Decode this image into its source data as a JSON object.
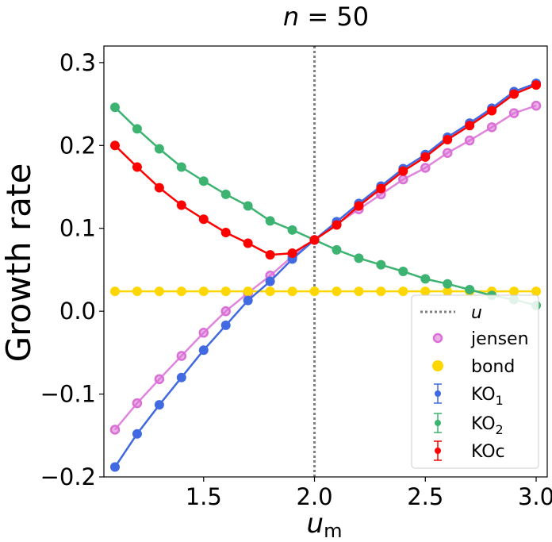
{
  "chart_data": {
    "type": "line",
    "title": "n = 50",
    "title_parts": {
      "lhs": "n",
      "eq": " = 50"
    },
    "ylabel": "Growth rate",
    "xlabel": "u",
    "xlabel_sub": "m",
    "xlim": [
      1.05,
      3.05
    ],
    "ylim": [
      -0.2,
      0.32
    ],
    "xticks": [
      1.5,
      2.0,
      2.5,
      3.0
    ],
    "xtick_labels": [
      "1.5",
      "2.0",
      "2.5",
      "3.0"
    ],
    "yticks": [
      -0.2,
      -0.1,
      0.0,
      0.1,
      0.2,
      0.3
    ],
    "ytick_labels": [
      "−0.2",
      "−0.1",
      "0.0",
      "0.1",
      "0.2",
      "0.3"
    ],
    "vline": {
      "x": 2.0,
      "color": "#808080",
      "label": "u"
    },
    "legend_position": "lower-right",
    "x": [
      1.1,
      1.2,
      1.3,
      1.4,
      1.5,
      1.6,
      1.7,
      1.8,
      1.9,
      2.0,
      2.1,
      2.2,
      2.3,
      2.4,
      2.5,
      2.6,
      2.7,
      2.8,
      2.9,
      3.0
    ],
    "series": [
      {
        "name": "jensen",
        "color": "#DA70D6",
        "style": "line-open-marker",
        "values": [
          -0.143,
          -0.111,
          -0.082,
          -0.054,
          -0.026,
          0.0,
          0.022,
          0.043,
          0.066,
          0.086,
          0.105,
          0.123,
          0.141,
          0.159,
          0.173,
          0.191,
          0.206,
          0.222,
          0.239,
          0.248
        ]
      },
      {
        "name": "bond",
        "color": "#FFD700",
        "style": "line-filled-marker",
        "values": [
          0.024,
          0.024,
          0.024,
          0.024,
          0.024,
          0.024,
          0.024,
          0.024,
          0.024,
          0.024,
          0.024,
          0.024,
          0.024,
          0.024,
          0.024,
          0.024,
          0.024,
          0.024,
          0.024,
          0.024
        ]
      },
      {
        "name": "KO",
        "name_sub": "1",
        "color": "#4169E1",
        "style": "errorbar",
        "values": [
          -0.188,
          -0.148,
          -0.113,
          -0.08,
          -0.047,
          -0.017,
          0.013,
          0.036,
          0.063,
          0.086,
          0.108,
          0.13,
          0.151,
          0.172,
          0.189,
          0.21,
          0.227,
          0.245,
          0.265,
          0.275
        ]
      },
      {
        "name": "KO",
        "name_sub": "2",
        "color": "#3CB371",
        "style": "errorbar",
        "values": [
          0.246,
          0.22,
          0.196,
          0.174,
          0.157,
          0.141,
          0.127,
          0.109,
          0.098,
          0.086,
          0.074,
          0.064,
          0.056,
          0.048,
          0.039,
          0.033,
          0.026,
          0.019,
          0.014,
          0.007
        ]
      },
      {
        "name": "KOc",
        "color": "#FF0000",
        "style": "errorbar",
        "values": [
          0.2,
          0.174,
          0.149,
          0.128,
          0.111,
          0.095,
          0.082,
          0.068,
          0.07,
          0.086,
          0.104,
          0.127,
          0.148,
          0.169,
          0.186,
          0.207,
          0.224,
          0.242,
          0.262,
          0.273
        ]
      }
    ]
  }
}
